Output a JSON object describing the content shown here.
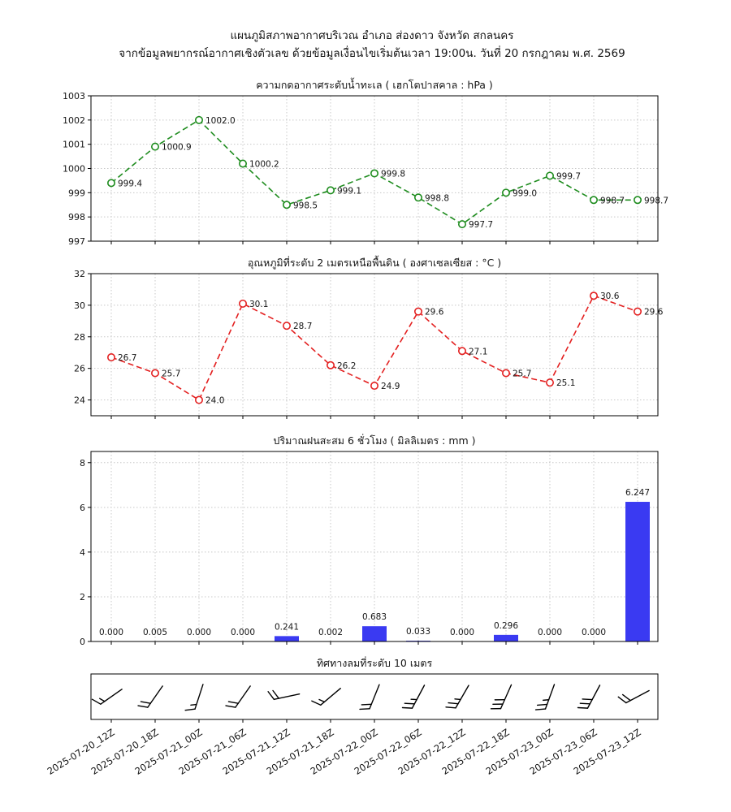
{
  "figure": {
    "title_line1": "แผนภูมิสภาพอากาศบริเวณ อำเภอ ส่องดาว จังหวัด สกลนคร",
    "title_line2": "จากข้อมูลพยากรณ์อากาศเชิงตัวเลข ด้วยข้อมูลเงื่อนไขเริ่มต้นเวลา 19:00น. วันที่ 20 กรกฎาคม พ.ศ. 2569"
  },
  "chart_data": {
    "categories": [
      "2025-07-20_12Z",
      "2025-07-20_18Z",
      "2025-07-21_00Z",
      "2025-07-21_06Z",
      "2025-07-21_12Z",
      "2025-07-21_18Z",
      "2025-07-22_00Z",
      "2025-07-22_06Z",
      "2025-07-22_12Z",
      "2025-07-22_18Z",
      "2025-07-23_00Z",
      "2025-07-23_06Z",
      "2025-07-23_12Z"
    ],
    "charts": [
      {
        "type": "line",
        "title": "ความกดอากาศระดับน้ำทะเล ( เฮกโตปาสคาล : hPa )",
        "values": [
          999.4,
          1000.9,
          1002.0,
          1000.2,
          998.5,
          999.1,
          999.8,
          998.8,
          997.7,
          999.0,
          999.7,
          998.7,
          998.7
        ],
        "labels": [
          "999.4",
          "1000.9",
          "1002.0",
          "1000.2",
          "998.5",
          "999.1",
          "999.8",
          "998.8",
          "997.7",
          "999.0",
          "999.7",
          "998.7",
          "998.7"
        ],
        "color": "#1e8c1e",
        "marker": "open-circle",
        "line_style": "dashed",
        "ylim": [
          997,
          1003
        ],
        "yticks": [
          997,
          998,
          999,
          1000,
          1001,
          1002,
          1003
        ],
        "grid": true
      },
      {
        "type": "line",
        "title": "อุณหภูมิที่ระดับ 2 เมตรเหนือพื้นดิน ( องศาเซลเซียส : °C )",
        "values": [
          26.7,
          25.7,
          24.0,
          30.1,
          28.7,
          26.2,
          24.9,
          29.6,
          27.1,
          25.7,
          25.1,
          30.6,
          29.6
        ],
        "labels": [
          "26.7",
          "25.7",
          "24.0",
          "30.1",
          "28.7",
          "26.2",
          "24.9",
          "29.6",
          "27.1",
          "25.7",
          "25.1",
          "30.6",
          "29.6"
        ],
        "color": "#e32020",
        "marker": "open-circle",
        "line_style": "dashed",
        "ylim": [
          23,
          32
        ],
        "yticks": [
          24,
          26,
          28,
          30,
          32
        ],
        "grid": true
      },
      {
        "type": "bar",
        "title": "ปริมาณฝนสะสม 6 ชั่วโมง ( มิลลิเมตร : mm )",
        "values": [
          0.0,
          0.005,
          0.0,
          0.0,
          0.241,
          0.002,
          0.683,
          0.033,
          0.0,
          0.296,
          0.0,
          0.0,
          6.247
        ],
        "labels": [
          "0.000",
          "0.005",
          "0.000",
          "0.000",
          "0.241",
          "0.002",
          "0.683",
          "0.033",
          "0.000",
          "0.296",
          "0.000",
          "0.000",
          "6.247"
        ],
        "color": "#3a3af2",
        "ylim": [
          0,
          8.5
        ],
        "yticks": [
          0,
          2,
          4,
          6,
          8
        ],
        "grid": true
      },
      {
        "type": "wind_barbs",
        "title": "ทิศทางลมที่ระดับ 10 เมตร",
        "barbs": [
          {
            "angle": 35,
            "full": 1,
            "half": 1
          },
          {
            "angle": 55,
            "full": 2,
            "half": 0
          },
          {
            "angle": 72,
            "full": 1,
            "half": 1
          },
          {
            "angle": 55,
            "full": 2,
            "half": 0
          },
          {
            "angle": 12,
            "full": 2,
            "half": 0
          },
          {
            "angle": 40,
            "full": 1,
            "half": 1
          },
          {
            "angle": 68,
            "full": 2,
            "half": 0
          },
          {
            "angle": 62,
            "full": 2,
            "half": 1
          },
          {
            "angle": 60,
            "full": 2,
            "half": 1
          },
          {
            "angle": 66,
            "full": 3,
            "half": 0
          },
          {
            "angle": 70,
            "full": 2,
            "half": 1
          },
          {
            "angle": 62,
            "full": 3,
            "half": 0
          },
          {
            "angle": 28,
            "full": 2,
            "half": 0
          }
        ]
      }
    ]
  }
}
